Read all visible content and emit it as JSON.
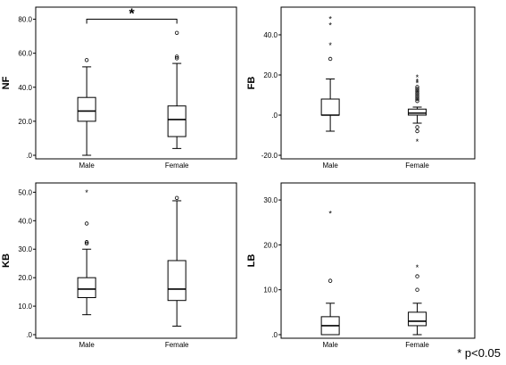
{
  "chart_data": [
    {
      "type": "boxplot",
      "ylabel": "NF",
      "categories": [
        "Male",
        "Female"
      ],
      "ylim": [
        0,
        85
      ],
      "yticks": [
        0,
        20,
        40,
        60,
        80
      ],
      "yticklabels": [
        ".0",
        "20.0",
        "40.0",
        "60.0",
        "80.0"
      ],
      "boxes": [
        {
          "min": 0,
          "q1": 20,
          "median": 26,
          "q3": 34,
          "max": 52,
          "outliers": [
            56
          ],
          "extremes": []
        },
        {
          "min": 4,
          "q1": 11,
          "median": 21,
          "q3": 29,
          "max": 54,
          "outliers": [
            57,
            58,
            72
          ],
          "extremes": []
        }
      ],
      "significance": {
        "between": [
          0,
          1
        ],
        "label": "*",
        "y": 80
      }
    },
    {
      "type": "boxplot",
      "ylabel": "FB",
      "categories": [
        "Male",
        "Female"
      ],
      "ylim": [
        -20,
        52
      ],
      "yticks": [
        -20,
        0,
        20,
        40
      ],
      "yticklabels": [
        "-20.0",
        ".0",
        "20.0",
        "40.0"
      ],
      "boxes": [
        {
          "min": -8,
          "q1": 0,
          "median": 0,
          "q3": 8,
          "max": 18,
          "outliers": [
            28
          ],
          "extremes": [
            35,
            45,
            48
          ]
        },
        {
          "min": -4,
          "q1": 0,
          "median": 1,
          "q3": 3,
          "max": 4,
          "outliers": [
            -6,
            -8,
            7,
            8,
            9,
            10,
            11,
            12,
            13,
            14
          ],
          "extremes": [
            -13,
            16,
            17,
            19
          ]
        }
      ]
    },
    {
      "type": "boxplot",
      "ylabel": "KB",
      "categories": [
        "Male",
        "Female"
      ],
      "ylim": [
        0,
        52
      ],
      "yticks": [
        0,
        10,
        20,
        30,
        40,
        50
      ],
      "yticklabels": [
        ".0",
        "10.0",
        "20.0",
        "30.0",
        "40.0",
        "50.0"
      ],
      "boxes": [
        {
          "min": 7,
          "q1": 13,
          "median": 16,
          "q3": 20,
          "max": 30,
          "outliers": [
            32,
            32.5,
            39
          ],
          "extremes": [
            50
          ]
        },
        {
          "min": 3,
          "q1": 12,
          "median": 16,
          "q3": 26,
          "max": 47,
          "outliers": [
            48
          ],
          "extremes": []
        }
      ]
    },
    {
      "type": "boxplot",
      "ylabel": "LB",
      "categories": [
        "Male",
        "Female"
      ],
      "ylim": [
        0,
        33
      ],
      "yticks": [
        0,
        10,
        20,
        30
      ],
      "yticklabels": [
        ".0",
        "10.0",
        "20.0",
        "30.0"
      ],
      "boxes": [
        {
          "min": 0,
          "q1": 0,
          "median": 2,
          "q3": 4,
          "max": 7,
          "outliers": [
            12
          ],
          "extremes": [
            27
          ]
        },
        {
          "min": 0,
          "q1": 2,
          "median": 3,
          "q3": 5,
          "max": 7,
          "outliers": [
            10,
            13
          ],
          "extremes": [
            15
          ]
        }
      ]
    }
  ],
  "footnote": "* p<0.05",
  "colors": {
    "box_fill": "#ffffff",
    "line": "#000000",
    "frame": "#000000"
  }
}
